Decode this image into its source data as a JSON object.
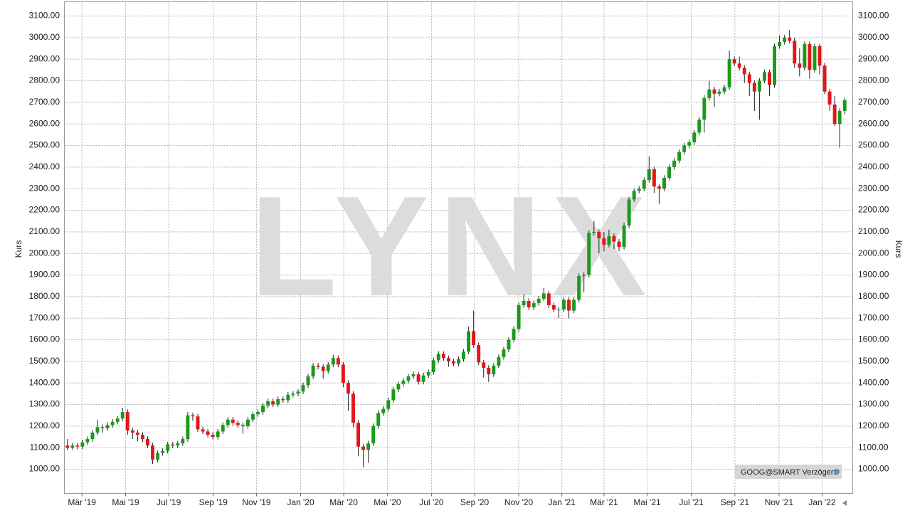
{
  "chart_data": {
    "type": "candlestick",
    "watermark": "LYNX",
    "badge": "GOOG@SMART Verzögert",
    "y_label": "Kurs",
    "colors": {
      "up": "#1a9a1a",
      "down": "#e3161b",
      "wick": "#222222"
    },
    "grid": true,
    "xlim": [
      -0.6,
      156.6
    ],
    "xticks": [
      {
        "value": 2.9,
        "label": "Mär '19"
      },
      {
        "value": 11.6,
        "label": "Mai '19"
      },
      {
        "value": 20.2,
        "label": "Jul '19"
      },
      {
        "value": 29.1,
        "label": "Sep '19"
      },
      {
        "value": 37.7,
        "label": "Nov '19"
      },
      {
        "value": 46.5,
        "label": "Jan '20"
      },
      {
        "value": 55.1,
        "label": "Mär '20"
      },
      {
        "value": 63.8,
        "label": "Mai '20"
      },
      {
        "value": 72.6,
        "label": "Jul '20"
      },
      {
        "value": 81.2,
        "label": "Sep '20"
      },
      {
        "value": 90.0,
        "label": "Nov '20"
      },
      {
        "value": 98.6,
        "label": "Jan '21"
      },
      {
        "value": 107.0,
        "label": "Mär '21"
      },
      {
        "value": 115.6,
        "label": "Mai '21"
      },
      {
        "value": 124.4,
        "label": "Jul '21"
      },
      {
        "value": 133.1,
        "label": "Sep '21"
      },
      {
        "value": 141.9,
        "label": "Nov '21"
      },
      {
        "value": 150.5,
        "label": "Jan '22"
      }
    ],
    "ylim": [
      888,
      3166
    ],
    "yticks": [
      {
        "value": 1000,
        "label": "1000.00"
      },
      {
        "value": 1100,
        "label": "1100.00"
      },
      {
        "value": 1200,
        "label": "1200.00"
      },
      {
        "value": 1300,
        "label": "1300.00"
      },
      {
        "value": 1400,
        "label": "1400.00"
      },
      {
        "value": 1500,
        "label": "1500.00"
      },
      {
        "value": 1600,
        "label": "1600.00"
      },
      {
        "value": 1700,
        "label": "1700.00"
      },
      {
        "value": 1800,
        "label": "1800.00"
      },
      {
        "value": 1900,
        "label": "1900.00"
      },
      {
        "value": 2000,
        "label": "2000.00"
      },
      {
        "value": 2100,
        "label": "2100.00"
      },
      {
        "value": 2200,
        "label": "2200.00"
      },
      {
        "value": 2300,
        "label": "2300.00"
      },
      {
        "value": 2400,
        "label": "2400.00"
      },
      {
        "value": 2500,
        "label": "2500.00"
      },
      {
        "value": 2600,
        "label": "2600.00"
      },
      {
        "value": 2700,
        "label": "2700.00"
      },
      {
        "value": 2800,
        "label": "2800.00"
      },
      {
        "value": 2900,
        "label": "2900.00"
      },
      {
        "value": 3000,
        "label": "3000.00"
      },
      {
        "value": 3100,
        "label": "3100.00"
      }
    ],
    "open": [
      1110,
      1100,
      1110,
      1105,
      1125,
      1140,
      1170,
      1195,
      1190,
      1205,
      1220,
      1235,
      1265,
      1180,
      1170,
      1160,
      1140,
      1110,
      1045,
      1075,
      1085,
      1115,
      1110,
      1120,
      1140,
      1250,
      1245,
      1185,
      1175,
      1160,
      1150,
      1175,
      1205,
      1230,
      1215,
      1205,
      1200,
      1230,
      1255,
      1265,
      1295,
      1315,
      1300,
      1325,
      1320,
      1345,
      1350,
      1360,
      1390,
      1430,
      1480,
      1475,
      1455,
      1485,
      1515,
      1485,
      1400,
      1350,
      1215,
      1105,
      1090,
      1120,
      1200,
      1260,
      1280,
      1320,
      1370,
      1395,
      1410,
      1430,
      1440,
      1405,
      1435,
      1450,
      1505,
      1535,
      1515,
      1500,
      1490,
      1510,
      1545,
      1640,
      1575,
      1495,
      1470,
      1440,
      1480,
      1520,
      1555,
      1600,
      1650,
      1760,
      1780,
      1750,
      1770,
      1790,
      1815,
      1760,
      1740,
      1740,
      1785,
      1735,
      1785,
      1895,
      1900,
      2095,
      2100,
      2070,
      2040,
      2080,
      2055,
      2030,
      2130,
      2250,
      2290,
      2300,
      2340,
      2390,
      2310,
      2300,
      2350,
      2400,
      2430,
      2470,
      2500,
      2515,
      2560,
      2620,
      2720,
      2760,
      2740,
      2750,
      2770,
      2900,
      2880,
      2860,
      2830,
      2790,
      2750,
      2800,
      2840,
      2780,
      2960,
      2980,
      3000,
      2985,
      2880,
      2860,
      2970,
      2850,
      2960,
      2870,
      2750,
      2690,
      2600,
      2660
    ],
    "high": [
      1140,
      1122,
      1122,
      1137,
      1152,
      1182,
      1230,
      1207,
      1217,
      1232,
      1247,
      1285,
      1277,
      1192,
      1182,
      1172,
      1152,
      1122,
      1087,
      1097,
      1127,
      1127,
      1132,
      1152,
      1265,
      1262,
      1257,
      1197,
      1187,
      1172,
      1187,
      1217,
      1242,
      1242,
      1227,
      1217,
      1242,
      1267,
      1277,
      1307,
      1327,
      1327,
      1337,
      1337,
      1357,
      1362,
      1372,
      1402,
      1442,
      1492,
      1492,
      1487,
      1497,
      1530,
      1527,
      1497,
      1412,
      1362,
      1227,
      1117,
      1132,
      1212,
      1272,
      1292,
      1332,
      1382,
      1407,
      1422,
      1442,
      1452,
      1452,
      1447,
      1462,
      1517,
      1547,
      1547,
      1527,
      1512,
      1522,
      1557,
      1660,
      1735,
      1587,
      1507,
      1482,
      1492,
      1532,
      1567,
      1612,
      1662,
      1772,
      1810,
      1792,
      1782,
      1802,
      1840,
      1827,
      1772,
      1752,
      1797,
      1797,
      1797,
      1907,
      1912,
      2107,
      2150,
      2112,
      2100,
      2110,
      2092,
      2067,
      2142,
      2262,
      2302,
      2312,
      2352,
      2450,
      2402,
      2322,
      2362,
      2412,
      2442,
      2482,
      2512,
      2527,
      2572,
      2632,
      2732,
      2800,
      2772,
      2762,
      2782,
      2940,
      2912,
      2912,
      2872,
      2842,
      2802,
      2812,
      2852,
      2852,
      2972,
      3010,
      3012,
      3035,
      3000,
      2950,
      2982,
      2982,
      2972,
      2972,
      2882,
      2762,
      2730,
      2672,
      2722
    ],
    "low": [
      1088,
      1090,
      1093,
      1093,
      1113,
      1128,
      1158,
      1170,
      1178,
      1193,
      1208,
      1223,
      1160,
      1140,
      1130,
      1125,
      1098,
      1025,
      1033,
      1063,
      1073,
      1098,
      1098,
      1108,
      1128,
      1225,
      1173,
      1163,
      1148,
      1138,
      1138,
      1163,
      1193,
      1203,
      1193,
      1165,
      1188,
      1218,
      1243,
      1253,
      1283,
      1288,
      1288,
      1308,
      1308,
      1333,
      1338,
      1348,
      1378,
      1418,
      1463,
      1420,
      1443,
      1473,
      1473,
      1380,
      1270,
      1195,
      1060,
      1010,
      1030,
      1108,
      1188,
      1248,
      1268,
      1308,
      1358,
      1383,
      1398,
      1418,
      1393,
      1393,
      1423,
      1438,
      1493,
      1503,
      1475,
      1478,
      1478,
      1498,
      1533,
      1563,
      1483,
      1425,
      1405,
      1428,
      1468,
      1508,
      1543,
      1588,
      1638,
      1748,
      1738,
      1738,
      1758,
      1778,
      1748,
      1728,
      1700,
      1728,
      1700,
      1723,
      1773,
      1820,
      1888,
      2083,
      2000,
      2010,
      2028,
      2020,
      2010,
      2018,
      2118,
      2238,
      2278,
      2288,
      2328,
      2280,
      2230,
      2288,
      2338,
      2388,
      2418,
      2458,
      2488,
      2503,
      2548,
      2560,
      2708,
      2680,
      2728,
      2738,
      2758,
      2868,
      2848,
      2790,
      2730,
      2660,
      2620,
      2788,
      2730,
      2768,
      2948,
      2968,
      2973,
      2860,
      2820,
      2848,
      2810,
      2838,
      2830,
      2738,
      2660,
      2590,
      2490,
      2645
    ],
    "close": [
      1100,
      1110,
      1105,
      1125,
      1140,
      1170,
      1195,
      1190,
      1205,
      1220,
      1235,
      1265,
      1180,
      1170,
      1160,
      1140,
      1110,
      1045,
      1075,
      1085,
      1115,
      1110,
      1120,
      1140,
      1250,
      1245,
      1185,
      1175,
      1160,
      1150,
      1175,
      1205,
      1230,
      1215,
      1205,
      1200,
      1230,
      1255,
      1265,
      1295,
      1315,
      1300,
      1325,
      1320,
      1345,
      1350,
      1360,
      1390,
      1430,
      1480,
      1475,
      1455,
      1485,
      1515,
      1485,
      1400,
      1350,
      1215,
      1105,
      1090,
      1120,
      1200,
      1260,
      1280,
      1320,
      1370,
      1395,
      1410,
      1430,
      1440,
      1405,
      1435,
      1450,
      1505,
      1535,
      1515,
      1500,
      1490,
      1510,
      1545,
      1640,
      1575,
      1495,
      1470,
      1440,
      1480,
      1520,
      1555,
      1600,
      1650,
      1760,
      1780,
      1750,
      1770,
      1790,
      1815,
      1760,
      1740,
      1740,
      1785,
      1735,
      1785,
      1895,
      1900,
      2095,
      2100,
      2070,
      2040,
      2080,
      2055,
      2030,
      2130,
      2250,
      2290,
      2300,
      2340,
      2390,
      2310,
      2300,
      2350,
      2400,
      2430,
      2470,
      2500,
      2515,
      2560,
      2620,
      2720,
      2760,
      2740,
      2750,
      2770,
      2900,
      2880,
      2860,
      2830,
      2790,
      2750,
      2800,
      2840,
      2780,
      2960,
      2980,
      3000,
      2985,
      2880,
      2860,
      2970,
      2850,
      2960,
      2870,
      2750,
      2690,
      2600,
      2660,
      2710
    ]
  }
}
